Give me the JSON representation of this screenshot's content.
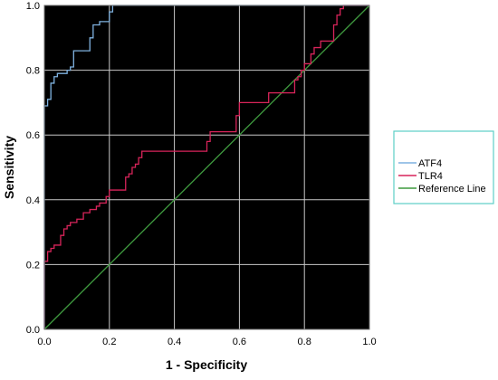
{
  "chart_data": {
    "type": "line",
    "title": "",
    "xlabel": "1 - Specificity",
    "ylabel": "Sensitivity",
    "xlim": [
      0.0,
      1.0
    ],
    "ylim": [
      0.0,
      1.0
    ],
    "xticks": [
      "0.0",
      "0.2",
      "0.4",
      "0.6",
      "0.8",
      "1.0"
    ],
    "yticks": [
      "0.0",
      "0.2",
      "0.4",
      "0.6",
      "0.8",
      "1.0"
    ],
    "grid": true,
    "plot_background": "#000000",
    "grid_color": "#c8c8c8",
    "legend_position": "right",
    "legend_border_color": "#5ccfc6",
    "series": [
      {
        "name": "ATF4",
        "color": "#7fb2e0",
        "points": [
          [
            0.0,
            0.0
          ],
          [
            0.0,
            0.69
          ],
          [
            0.01,
            0.69
          ],
          [
            0.01,
            0.71
          ],
          [
            0.02,
            0.71
          ],
          [
            0.02,
            0.76
          ],
          [
            0.03,
            0.76
          ],
          [
            0.03,
            0.78
          ],
          [
            0.04,
            0.78
          ],
          [
            0.04,
            0.79
          ],
          [
            0.07,
            0.79
          ],
          [
            0.07,
            0.8
          ],
          [
            0.08,
            0.8
          ],
          [
            0.08,
            0.81
          ],
          [
            0.09,
            0.81
          ],
          [
            0.09,
            0.86
          ],
          [
            0.14,
            0.86
          ],
          [
            0.14,
            0.9
          ],
          [
            0.15,
            0.9
          ],
          [
            0.15,
            0.94
          ],
          [
            0.17,
            0.94
          ],
          [
            0.17,
            0.95
          ],
          [
            0.2,
            0.95
          ],
          [
            0.2,
            0.98
          ],
          [
            0.21,
            0.98
          ],
          [
            0.21,
            1.0
          ],
          [
            1.0,
            1.0
          ]
        ]
      },
      {
        "name": "TLR4",
        "color": "#d8245a",
        "points": [
          [
            0.0,
            0.0
          ],
          [
            0.0,
            0.21
          ],
          [
            0.01,
            0.21
          ],
          [
            0.01,
            0.24
          ],
          [
            0.02,
            0.24
          ],
          [
            0.02,
            0.25
          ],
          [
            0.03,
            0.25
          ],
          [
            0.03,
            0.26
          ],
          [
            0.05,
            0.26
          ],
          [
            0.05,
            0.29
          ],
          [
            0.06,
            0.29
          ],
          [
            0.06,
            0.31
          ],
          [
            0.07,
            0.31
          ],
          [
            0.07,
            0.32
          ],
          [
            0.08,
            0.32
          ],
          [
            0.08,
            0.33
          ],
          [
            0.1,
            0.33
          ],
          [
            0.1,
            0.34
          ],
          [
            0.12,
            0.34
          ],
          [
            0.12,
            0.36
          ],
          [
            0.14,
            0.36
          ],
          [
            0.14,
            0.37
          ],
          [
            0.16,
            0.37
          ],
          [
            0.16,
            0.38
          ],
          [
            0.17,
            0.38
          ],
          [
            0.17,
            0.39
          ],
          [
            0.19,
            0.39
          ],
          [
            0.19,
            0.41
          ],
          [
            0.2,
            0.41
          ],
          [
            0.2,
            0.43
          ],
          [
            0.25,
            0.43
          ],
          [
            0.25,
            0.47
          ],
          [
            0.26,
            0.47
          ],
          [
            0.26,
            0.48
          ],
          [
            0.27,
            0.48
          ],
          [
            0.27,
            0.5
          ],
          [
            0.28,
            0.5
          ],
          [
            0.28,
            0.51
          ],
          [
            0.29,
            0.51
          ],
          [
            0.29,
            0.53
          ],
          [
            0.3,
            0.53
          ],
          [
            0.3,
            0.55
          ],
          [
            0.5,
            0.55
          ],
          [
            0.5,
            0.58
          ],
          [
            0.51,
            0.58
          ],
          [
            0.51,
            0.61
          ],
          [
            0.59,
            0.61
          ],
          [
            0.59,
            0.66
          ],
          [
            0.6,
            0.66
          ],
          [
            0.6,
            0.7
          ],
          [
            0.69,
            0.7
          ],
          [
            0.69,
            0.73
          ],
          [
            0.77,
            0.73
          ],
          [
            0.77,
            0.77
          ],
          [
            0.78,
            0.77
          ],
          [
            0.78,
            0.78
          ],
          [
            0.79,
            0.78
          ],
          [
            0.79,
            0.8
          ],
          [
            0.8,
            0.8
          ],
          [
            0.8,
            0.82
          ],
          [
            0.82,
            0.82
          ],
          [
            0.82,
            0.85
          ],
          [
            0.83,
            0.85
          ],
          [
            0.83,
            0.87
          ],
          [
            0.85,
            0.87
          ],
          [
            0.85,
            0.89
          ],
          [
            0.89,
            0.89
          ],
          [
            0.89,
            0.94
          ],
          [
            0.9,
            0.94
          ],
          [
            0.9,
            0.97
          ],
          [
            0.91,
            0.97
          ],
          [
            0.91,
            0.99
          ],
          [
            0.92,
            0.99
          ],
          [
            0.92,
            1.0
          ],
          [
            1.0,
            1.0
          ]
        ]
      },
      {
        "name": "Reference Line",
        "color": "#3f9a3f",
        "points": [
          [
            0.0,
            0.0
          ],
          [
            1.0,
            1.0
          ]
        ]
      }
    ]
  }
}
